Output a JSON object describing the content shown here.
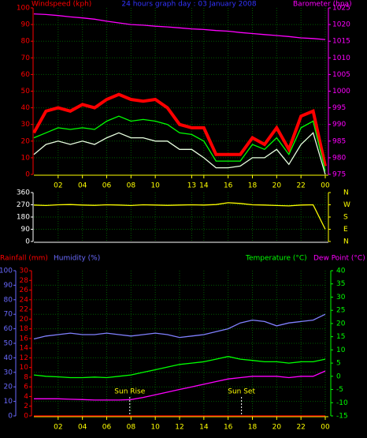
{
  "chart_data": [
    {
      "type": "line",
      "title": "24 hours graph day : 03 January 2008",
      "grid": true,
      "xlim": [
        0,
        24
      ],
      "xticks": [
        {
          "value": 2,
          "label": "02"
        },
        {
          "value": 4,
          "label": "04"
        },
        {
          "value": 6,
          "label": "06"
        },
        {
          "value": 8,
          "label": "08"
        },
        10,
        13,
        14,
        16,
        18,
        20,
        22,
        {
          "value": 24,
          "label": "00"
        }
      ],
      "axes": [
        {
          "label": "Windspeed (kph)",
          "color": "#ff0000",
          "lim": [
            0,
            100
          ],
          "ticks": [
            0,
            10,
            20,
            30,
            40,
            50,
            60,
            70,
            80,
            90,
            100
          ]
        },
        {
          "label": "Barometer (hpa)",
          "color": "#ff00ff",
          "lim": [
            975,
            1025
          ],
          "ticks": [
            975,
            980,
            985,
            990,
            995,
            1000,
            1005,
            1010,
            1015,
            1020,
            1025
          ]
        }
      ],
      "x": [
        0,
        1,
        2,
        3,
        4,
        5,
        6,
        7,
        8,
        9,
        10,
        11,
        12,
        13,
        14,
        15,
        16,
        17,
        18,
        19,
        20,
        21,
        22,
        23,
        24
      ],
      "series": [
        {
          "color": "#ff0000",
          "axis": 0,
          "values": [
            25,
            38,
            40,
            38,
            42,
            40,
            45,
            48,
            45,
            44,
            45,
            40,
            30,
            28,
            28,
            12,
            12,
            12,
            22,
            18,
            28,
            15,
            35,
            38,
            5
          ]
        },
        {
          "color": "#00ff00",
          "axis": 0,
          "values": [
            22,
            25,
            28,
            27,
            28,
            27,
            32,
            35,
            32,
            33,
            32,
            30,
            25,
            24,
            20,
            8,
            8,
            8,
            18,
            15,
            22,
            12,
            28,
            32,
            2
          ]
        },
        {
          "color": "#e8ffe0",
          "axis": 0,
          "values": [
            12,
            18,
            20,
            18,
            20,
            18,
            22,
            25,
            22,
            22,
            20,
            20,
            15,
            15,
            10,
            4,
            4,
            5,
            10,
            10,
            15,
            6,
            18,
            25,
            0
          ]
        },
        {
          "color": "#ff00ff",
          "axis": 1,
          "values": [
            1023.2,
            1023,
            1022.7,
            1022.3,
            1022,
            1021.6,
            1021,
            1020.5,
            1020,
            1019.8,
            1019.5,
            1019.3,
            1019,
            1018.7,
            1018.5,
            1018.2,
            1018,
            1017.6,
            1017.3,
            1017,
            1016.7,
            1016.4,
            1016,
            1015.8,
            1015.5
          ]
        }
      ]
    },
    {
      "type": "line",
      "grid": true,
      "xlim": [
        0,
        24
      ],
      "axes": [
        {
          "color": "#ffffff",
          "lim": [
            0,
            360
          ],
          "ticks": [
            0,
            90,
            180,
            270,
            360
          ]
        },
        {
          "color": "#ffff00",
          "lim": [
            0,
            360
          ],
          "ticks": [
            {
              "value": 0,
              "label": "N"
            },
            {
              "value": 90,
              "label": "E"
            },
            {
              "value": 180,
              "label": "S"
            },
            {
              "value": 270,
              "label": "W"
            },
            {
              "value": 360,
              "label": "N"
            }
          ]
        }
      ],
      "x": [
        0,
        1,
        2,
        3,
        4,
        5,
        6,
        7,
        8,
        9,
        10,
        11,
        12,
        13,
        14,
        15,
        16,
        17,
        18,
        19,
        20,
        21,
        22,
        23,
        24
      ],
      "series": [
        {
          "color": "#ffff00",
          "axis": 0,
          "values": [
            268,
            265,
            270,
            272,
            268,
            266,
            270,
            268,
            265,
            270,
            268,
            266,
            268,
            270,
            268,
            272,
            285,
            280,
            270,
            268,
            265,
            262,
            268,
            270,
            90
          ]
        }
      ]
    },
    {
      "type": "line",
      "grid": true,
      "xlim": [
        0,
        24
      ],
      "xticks": [
        {
          "value": 2,
          "label": "02"
        },
        {
          "value": 4,
          "label": "04"
        },
        {
          "value": 6,
          "label": "06"
        },
        {
          "value": 8,
          "label": "08"
        },
        10,
        12,
        14,
        16,
        18,
        20,
        22,
        {
          "value": 24,
          "label": "00"
        }
      ],
      "axes": [
        {
          "label": "Humidity (%)",
          "color": "#6a6aff",
          "lim": [
            0,
            100
          ],
          "ticks": [
            0,
            10,
            20,
            30,
            40,
            50,
            60,
            70,
            80,
            90,
            100
          ]
        },
        {
          "label": "Rainfall (mm)",
          "color": "#ff0000",
          "lim": [
            0,
            30
          ],
          "ticks": [
            0,
            2,
            4,
            6,
            8,
            10,
            12,
            14,
            16,
            18,
            20,
            22,
            24,
            26,
            28,
            30
          ]
        },
        {
          "label": "Temperature (°C)",
          "color": "#00ff00",
          "lim": [
            -15,
            40
          ],
          "ticks": [
            -15,
            -10,
            -5,
            0,
            5,
            10,
            15,
            20,
            25,
            30,
            35,
            40
          ]
        }
      ],
      "x": [
        0,
        1,
        2,
        3,
        4,
        5,
        6,
        7,
        8,
        9,
        10,
        11,
        12,
        13,
        14,
        15,
        16,
        17,
        18,
        19,
        20,
        21,
        22,
        23,
        24
      ],
      "series": [
        {
          "color": "#8080ff",
          "axis": 0,
          "values": [
            53,
            55,
            56,
            57,
            56,
            56,
            57,
            56,
            55,
            56,
            57,
            56,
            54,
            55,
            56,
            58,
            60,
            64,
            66,
            65,
            62,
            64,
            65,
            66,
            70
          ]
        },
        {
          "color": "#ff0000",
          "axis": 1,
          "values": [
            0,
            0,
            0,
            0,
            0,
            0,
            0,
            0,
            0,
            0,
            0,
            0,
            0,
            0,
            0,
            0,
            0,
            0,
            0,
            0,
            0,
            0,
            0,
            0,
            0
          ]
        },
        {
          "color": "#00ff00",
          "axis": 2,
          "values": [
            0.5,
            0,
            -0.2,
            -0.5,
            -0.5,
            -0.3,
            -0.5,
            0,
            0.5,
            1.5,
            2.5,
            3.5,
            4.5,
            5,
            5.5,
            6.5,
            7.5,
            6.5,
            6,
            5.5,
            5.5,
            5,
            5.5,
            5.5,
            6.5
          ]
        },
        {
          "name": "Dew Point (°C)",
          "color": "#ff00ff",
          "axis": 2,
          "values": [
            -8.5,
            -8.5,
            -8.5,
            -8.7,
            -8.8,
            -9,
            -9,
            -9,
            -8.8,
            -8,
            -7,
            -6,
            -5,
            -4,
            -3,
            -2,
            -1,
            -0.5,
            0,
            0,
            0,
            -0.5,
            0,
            0,
            2
          ]
        }
      ],
      "annotations": [
        {
          "text": "Sun Rise",
          "x": 7.9
        },
        {
          "text": "Sun Set",
          "x": 17.1
        }
      ]
    }
  ]
}
